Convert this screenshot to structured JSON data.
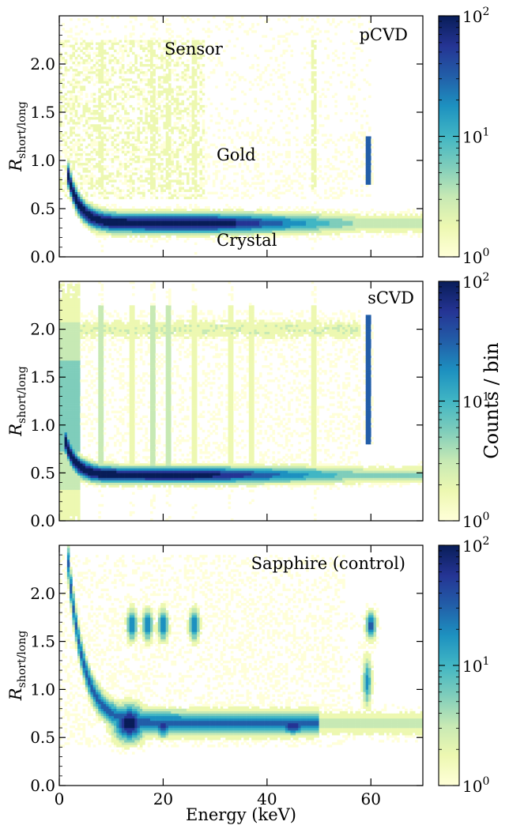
{
  "figure": {
    "xlabel": "Energy (keV)",
    "ylabel_main": "R",
    "ylabel_sub": "short/long",
    "colorbar_label": "Counts / bin",
    "x_ticks": [
      "0",
      "20",
      "40",
      "60"
    ],
    "y_ticks": [
      "0.0",
      "0.5",
      "1.0",
      "1.5",
      "2.0"
    ],
    "cb_base": "10",
    "cb_exps": [
      "0",
      "1",
      "2"
    ]
  },
  "colormap": [
    "#ffffd9",
    "#edf8b1",
    "#c7e9b4",
    "#7fcdbb",
    "#41b6c4",
    "#1d91c0",
    "#225ea8",
    "#253494",
    "#081d58"
  ],
  "chart_data": [
    {
      "type": "heatmap",
      "panel": "pCVD",
      "title": "pCVD",
      "annotations": [
        "Sensor",
        "Gold",
        "Crystal"
      ],
      "xlabel": "",
      "ylabel": "R_short/long",
      "xlim": [
        0,
        70
      ],
      "ylim": [
        0,
        2.5
      ],
      "colorbar": {
        "scale": "log",
        "range": [
          1,
          100
        ]
      },
      "vertical_lines_keV": [
        8,
        18,
        21,
        26,
        49,
        59.5
      ],
      "band_ratio": 0.35,
      "peak_counts": 100
    },
    {
      "type": "heatmap",
      "panel": "sCVD",
      "title": "sCVD",
      "annotations": [],
      "xlabel": "",
      "ylabel": "R_short/long",
      "xlim": [
        0,
        70
      ],
      "ylim": [
        0,
        2.5
      ],
      "colorbar": {
        "scale": "log",
        "range": [
          1,
          100
        ],
        "label": "Counts / bin"
      },
      "vertical_lines_keV": [
        8,
        14,
        18,
        21,
        26,
        33,
        37,
        49,
        59.5
      ],
      "band_ratio": 0.48,
      "peak_counts": 100
    },
    {
      "type": "heatmap",
      "panel": "Sapphire (control)",
      "title": "Sapphire (control)",
      "annotations": [],
      "xlabel": "Energy (keV)",
      "ylabel": "R_short/long",
      "xlim": [
        0,
        70
      ],
      "ylim": [
        0,
        2.5
      ],
      "colorbar": {
        "scale": "log",
        "range": [
          1,
          100
        ]
      },
      "band_ratio": 0.65,
      "blob_energies_keV": [
        13,
        15,
        20,
        45
      ],
      "upper_band_ratio": 1.67,
      "peak_counts": 100
    }
  ]
}
